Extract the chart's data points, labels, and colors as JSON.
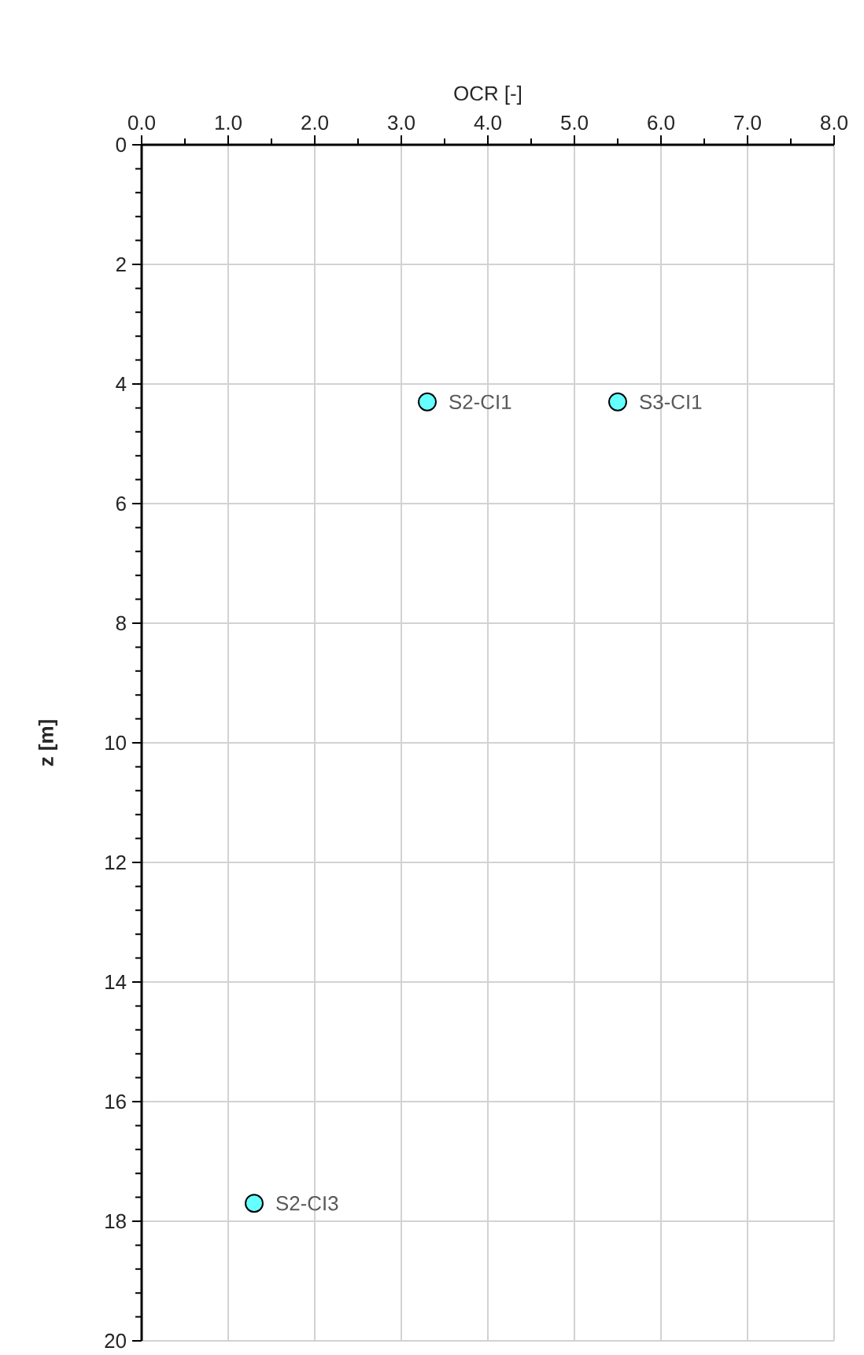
{
  "chart_data": {
    "type": "scatter",
    "xlabel": "OCR [-]",
    "ylabel": "z [m]",
    "xlim": [
      0,
      8
    ],
    "ylim": [
      20,
      0
    ],
    "xticks": [
      {
        "value": 0,
        "label": "0.0"
      },
      {
        "value": 1,
        "label": "1.0"
      },
      {
        "value": 2,
        "label": "2.0"
      },
      {
        "value": 3,
        "label": "3.0"
      },
      {
        "value": 4,
        "label": "4.0"
      },
      {
        "value": 5,
        "label": "5.0"
      },
      {
        "value": 6,
        "label": "6.0"
      },
      {
        "value": 7,
        "label": "7.0"
      },
      {
        "value": 8,
        "label": "8.0"
      }
    ],
    "yticks": [
      0,
      2,
      4,
      6,
      8,
      10,
      12,
      14,
      16,
      18,
      20
    ],
    "x": [
      3.3,
      5.5,
      1.3
    ],
    "values": [
      4.3,
      4.3,
      17.7
    ],
    "color": "#66ffff",
    "marker": "circle",
    "grid": true,
    "annotations": [
      {
        "text": "S2-CI1",
        "x": 3.3,
        "y": 4.3
      },
      {
        "text": "S3-CI1",
        "x": 5.5,
        "y": 4.3
      },
      {
        "text": "S2-CI3",
        "x": 1.3,
        "y": 17.7
      }
    ]
  }
}
